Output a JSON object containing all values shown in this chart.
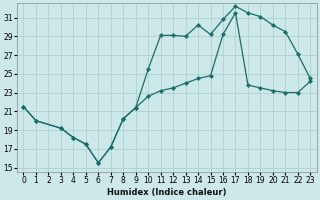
{
  "xlabel": "Humidex (Indice chaleur)",
  "bg_color": "#cce8e8",
  "line_color": "#1a6e6a",
  "grid_color": "#b0d0d0",
  "xlim": [
    -0.5,
    23.5
  ],
  "ylim": [
    14.5,
    32.5
  ],
  "xticks": [
    0,
    1,
    2,
    3,
    4,
    5,
    6,
    7,
    8,
    9,
    10,
    11,
    12,
    13,
    14,
    15,
    16,
    17,
    18,
    19,
    20,
    21,
    22,
    23
  ],
  "yticks": [
    15,
    17,
    19,
    21,
    23,
    25,
    27,
    29,
    31
  ],
  "line1_x": [
    0,
    1,
    3,
    4,
    5,
    6,
    7,
    8,
    9,
    10,
    11,
    12,
    13,
    14,
    15,
    16,
    17,
    18,
    19,
    20,
    21,
    22,
    23
  ],
  "line1_y": [
    21.5,
    20.0,
    19.2,
    18.2,
    17.5,
    15.5,
    17.2,
    20.2,
    21.4,
    25.5,
    29.1,
    29.1,
    29.0,
    30.2,
    29.2,
    30.8,
    32.2,
    31.5,
    31.1,
    30.2,
    29.5,
    27.1,
    24.5
  ],
  "line2_x": [
    0,
    1,
    3,
    4,
    5,
    6,
    7,
    8,
    9,
    10,
    11,
    12,
    13,
    14,
    15,
    16,
    17,
    18,
    19,
    20,
    21,
    22,
    23
  ],
  "line2_y": [
    21.5,
    20.0,
    19.2,
    18.2,
    17.5,
    15.5,
    17.2,
    20.2,
    21.4,
    22.6,
    23.2,
    23.5,
    24.0,
    24.5,
    24.8,
    29.2,
    31.5,
    23.8,
    23.5,
    23.2,
    23.0,
    23.0,
    24.2
  ]
}
